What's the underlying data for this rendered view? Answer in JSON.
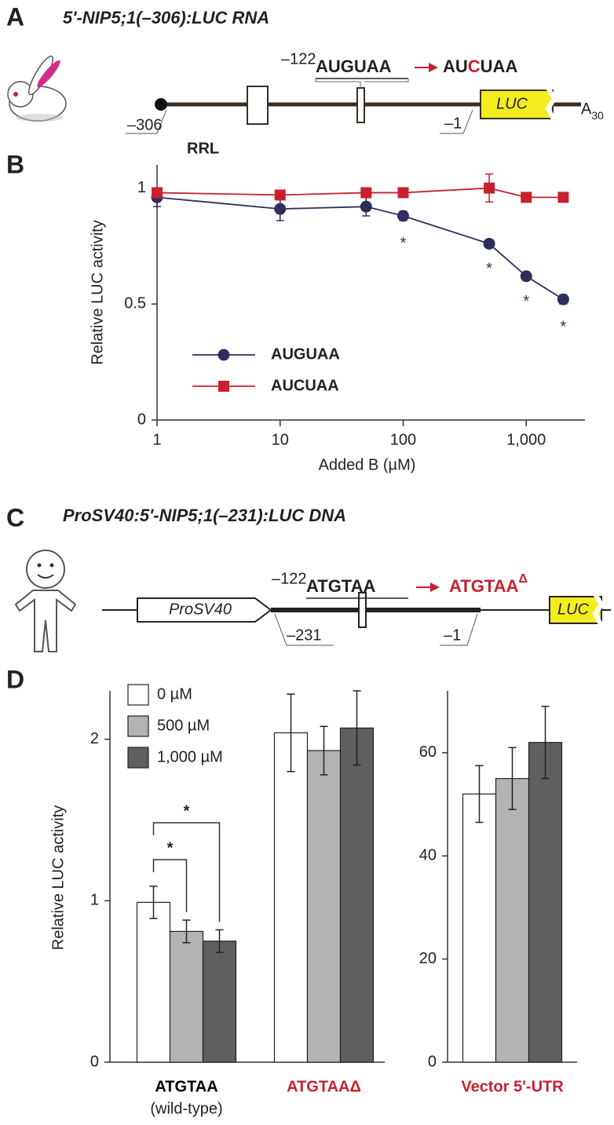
{
  "panel_labels": [
    "A",
    "B",
    "C",
    "D"
  ],
  "diagram_a": {
    "title": "5'-NIP5;1(–306):LUC RNA",
    "position_start": "–306",
    "position_mutation": "–122",
    "position_end": "–1",
    "wild_type": "AUGUAA",
    "mutant": [
      "AU",
      "C",
      "UAA"
    ],
    "reporter": "LUC",
    "poly_a": "A",
    "poly_a_length": "30"
  },
  "diagram_c": {
    "title": "ProSV40:5'-NIP5;1(–231):LUC DNA",
    "promoter": "ProSV40",
    "position_start": "–231",
    "position_mutation": "–122",
    "position_end": "–1",
    "wild_type": "ATGTAA",
    "mutant": "ATGTAA",
    "mutant_mark": "Δ",
    "reporter": "LUC"
  },
  "chart_data": [
    {
      "type": "line",
      "label": "RRL",
      "x_label": "Added B (µM)",
      "y_label": "Relative LUC activity",
      "xscale": "log",
      "xlim": [
        1,
        3000
      ],
      "xticks": [
        1,
        10,
        100,
        {
          "value": 1000,
          "label": "1,000"
        }
      ],
      "ylim": [
        0,
        1.1
      ],
      "yticks": [
        0,
        0.5,
        1
      ],
      "legend": "lower left",
      "series": [
        {
          "name": "AUGUAA",
          "color": "#2e2d5e",
          "marker": "circle",
          "x": [
            1,
            10,
            50,
            100,
            500,
            1000,
            2000
          ],
          "values": [
            0.96,
            0.91,
            0.92,
            0.88,
            0.76,
            0.62,
            0.52
          ],
          "errors": [
            0.04,
            0.05,
            0.04,
            0.02,
            0.01,
            0.01,
            0.02
          ]
        },
        {
          "name": "AUCUAA",
          "color": "#c8202e",
          "marker": "square",
          "x": [
            1,
            10,
            50,
            100,
            500,
            1000,
            2000
          ],
          "values": [
            0.98,
            0.97,
            0.98,
            0.98,
            1.0,
            0.96,
            0.96
          ],
          "errors": [
            0.02,
            0.01,
            0.01,
            0.01,
            0.06,
            0.01,
            0.01
          ]
        }
      ],
      "annotations": [
        {
          "text": "*",
          "x": 100
        },
        {
          "text": "*",
          "x": 500
        },
        {
          "text": "*",
          "x": 1000
        },
        {
          "text": "*",
          "x": 2000
        }
      ]
    },
    {
      "type": "bar",
      "y_label": "Relative LUC activity",
      "ylim": [
        0,
        2.3
      ],
      "yticks": [
        0,
        1,
        2
      ],
      "categories": [
        "ATGTAA",
        "ATGTAAΔ"
      ],
      "category_colors": [
        "#000000",
        "#c8202e"
      ],
      "category_notes": [
        "(wild-type)",
        null
      ],
      "series": [
        {
          "name": "0 µM",
          "color": "#ffffff",
          "values": [
            0.99,
            2.04
          ],
          "errors": [
            0.1,
            0.24
          ]
        },
        {
          "name": "500 µM",
          "color": "#b3b2b5",
          "values": [
            0.81,
            1.93
          ],
          "errors": [
            0.07,
            0.15
          ]
        },
        {
          "name": "1,000 µM",
          "color": "#5f5e60",
          "values": [
            0.75,
            2.07
          ],
          "errors": [
            0.07,
            0.23
          ]
        }
      ],
      "annotations": [
        {
          "text": "*"
        },
        {
          "text": "*"
        }
      ]
    },
    {
      "type": "bar",
      "ylim": [
        0,
        72
      ],
      "yticks": [
        0,
        20,
        40,
        60
      ],
      "categories": [
        "Vector 5'-UTR"
      ],
      "category_colors": [
        "#c8202e"
      ],
      "series": [
        {
          "color": "#ffffff",
          "values": [
            52
          ],
          "errors": [
            5.5
          ]
        },
        {
          "color": "#b3b2b5",
          "values": [
            55
          ],
          "errors": [
            6
          ]
        },
        {
          "color": "#5f5e60",
          "values": [
            62
          ],
          "errors": [
            7
          ]
        }
      ]
    }
  ]
}
